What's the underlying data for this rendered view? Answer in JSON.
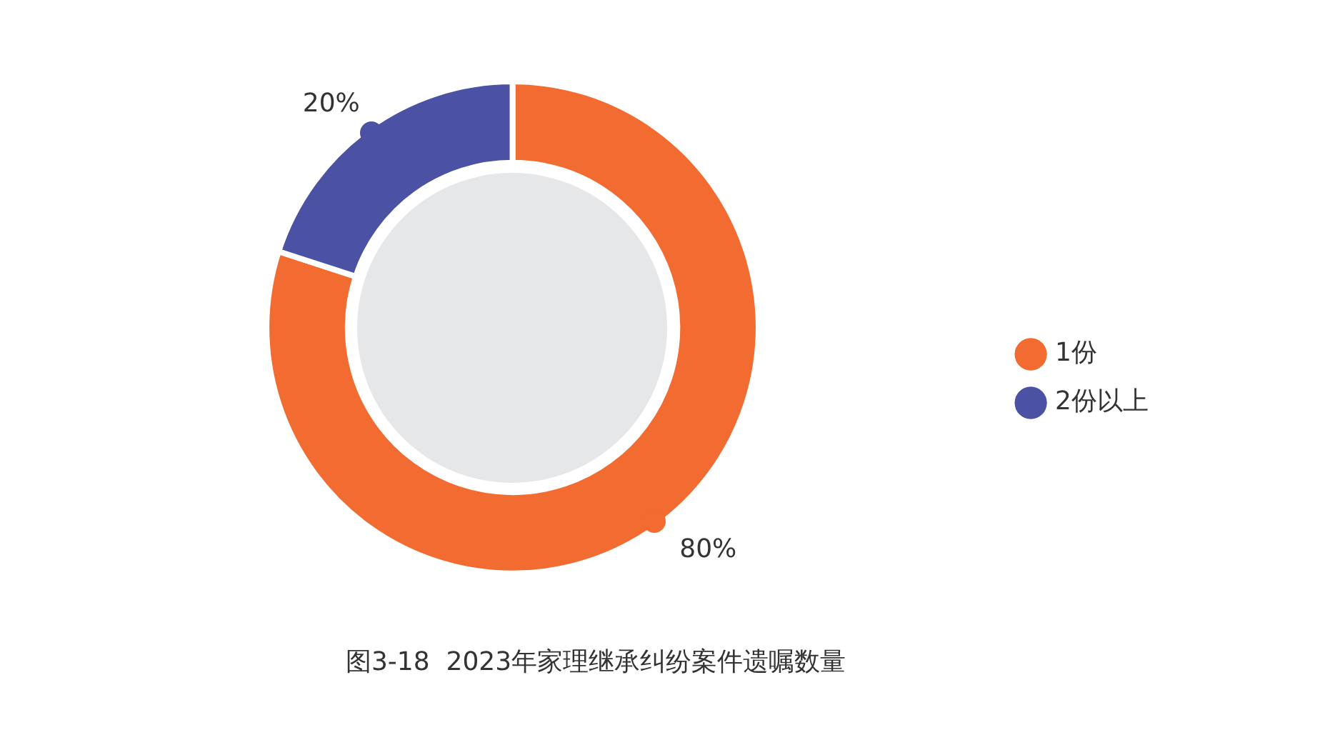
{
  "chart_data": {
    "type": "donut",
    "title": "图3-18  2023年家理继承纠纷案件遗嘱数量",
    "categories": [
      "1份",
      "2份以上"
    ],
    "values": [
      80,
      20
    ],
    "colors": [
      "#f26b30",
      "#4c52a3"
    ],
    "value_labels": [
      "80%",
      "20%"
    ],
    "legend": "right"
  }
}
